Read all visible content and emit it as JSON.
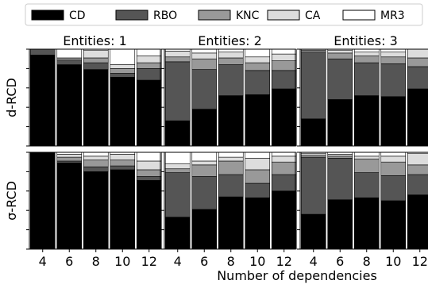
{
  "chart_data": {
    "type": "bar",
    "stacked": true,
    "normalized": true,
    "xlabel": "Number of dependencies",
    "categories": [
      "4",
      "6",
      "8",
      "10",
      "12"
    ],
    "legend": {
      "placement": "top",
      "entries": [
        {
          "name": "CD",
          "color": "#000000"
        },
        {
          "name": "RBO",
          "color": "#555555"
        },
        {
          "name": "KNC",
          "color": "#999999"
        },
        {
          "name": "CA",
          "color": "#dddddd"
        },
        {
          "name": "MR3",
          "color": "#ffffff"
        }
      ]
    },
    "rows": [
      {
        "label": "d-RCD"
      },
      {
        "label": "σ-RCD"
      }
    ],
    "columns": [
      {
        "label": "Entities: 1"
      },
      {
        "label": "Entities: 2"
      },
      {
        "label": "Entities: 3"
      }
    ],
    "panels": [
      {
        "row": 0,
        "col": 0,
        "values": [
          [
            0.94,
            0.06,
            0.0,
            0.0,
            0.0
          ],
          [
            0.84,
            0.04,
            0.02,
            0.01,
            0.09
          ],
          [
            0.79,
            0.07,
            0.05,
            0.08,
            0.01
          ],
          [
            0.71,
            0.04,
            0.05,
            0.04,
            0.16
          ],
          [
            0.68,
            0.12,
            0.06,
            0.07,
            0.07
          ]
        ]
      },
      {
        "row": 0,
        "col": 1,
        "values": [
          [
            0.26,
            0.61,
            0.05,
            0.06,
            0.02
          ],
          [
            0.38,
            0.41,
            0.11,
            0.06,
            0.04
          ],
          [
            0.52,
            0.32,
            0.07,
            0.06,
            0.03
          ],
          [
            0.53,
            0.25,
            0.08,
            0.06,
            0.08
          ],
          [
            0.59,
            0.19,
            0.1,
            0.07,
            0.05
          ]
        ]
      },
      {
        "row": 0,
        "col": 2,
        "values": [
          [
            0.28,
            0.69,
            0.02,
            0.01,
            0.0
          ],
          [
            0.48,
            0.42,
            0.06,
            0.03,
            0.01
          ],
          [
            0.52,
            0.34,
            0.07,
            0.04,
            0.03
          ],
          [
            0.51,
            0.34,
            0.07,
            0.05,
            0.03
          ],
          [
            0.59,
            0.23,
            0.09,
            0.09,
            0.0
          ]
        ]
      },
      {
        "row": 1,
        "col": 0,
        "values": [
          [
            1.0,
            0.0,
            0.0,
            0.0,
            0.0
          ],
          [
            0.89,
            0.02,
            0.04,
            0.03,
            0.02
          ],
          [
            0.8,
            0.05,
            0.07,
            0.04,
            0.04
          ],
          [
            0.82,
            0.04,
            0.06,
            0.06,
            0.02
          ],
          [
            0.71,
            0.04,
            0.07,
            0.09,
            0.09
          ]
        ]
      },
      {
        "row": 1,
        "col": 1,
        "values": [
          [
            0.33,
            0.46,
            0.04,
            0.05,
            0.12
          ],
          [
            0.41,
            0.34,
            0.12,
            0.04,
            0.09
          ],
          [
            0.54,
            0.23,
            0.14,
            0.04,
            0.05
          ],
          [
            0.53,
            0.15,
            0.14,
            0.12,
            0.06
          ],
          [
            0.6,
            0.17,
            0.13,
            0.06,
            0.04
          ]
        ]
      },
      {
        "row": 1,
        "col": 2,
        "values": [
          [
            0.36,
            0.59,
            0.02,
            0.02,
            0.01
          ],
          [
            0.51,
            0.43,
            0.02,
            0.02,
            0.02
          ],
          [
            0.53,
            0.26,
            0.14,
            0.03,
            0.04
          ],
          [
            0.5,
            0.26,
            0.14,
            0.06,
            0.04
          ],
          [
            0.56,
            0.21,
            0.1,
            0.12,
            0.01
          ]
        ]
      }
    ]
  }
}
